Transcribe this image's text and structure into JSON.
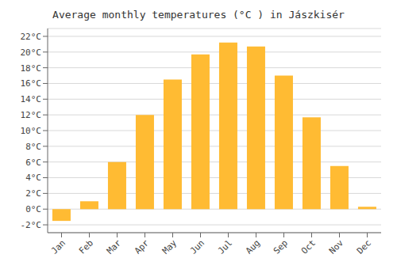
{
  "chart_data": {
    "type": "bar",
    "title": "Average monthly temperatures (°C ) in Jászkisér",
    "categories": [
      "Jan",
      "Feb",
      "Mar",
      "Apr",
      "May",
      "Jun",
      "Jul",
      "Aug",
      "Sep",
      "Oct",
      "Nov",
      "Dec"
    ],
    "values": [
      -1.5,
      1.0,
      6.0,
      12.0,
      16.5,
      19.7,
      21.2,
      20.7,
      17.0,
      11.7,
      5.5,
      0.3
    ],
    "color": "#FFBB33",
    "ylim": [
      -3,
      23
    ],
    "yticks": [
      {
        "value": -2,
        "label": "-2°C"
      },
      {
        "value": 0,
        "label": "0°C"
      },
      {
        "value": 2,
        "label": "2°C"
      },
      {
        "value": 4,
        "label": "4°C"
      },
      {
        "value": 6,
        "label": "6°C"
      },
      {
        "value": 8,
        "label": "8°C"
      },
      {
        "value": 10,
        "label": "10°C"
      },
      {
        "value": 12,
        "label": "12°C"
      },
      {
        "value": 14,
        "label": "14°C"
      },
      {
        "value": 16,
        "label": "16°C"
      },
      {
        "value": 18,
        "label": "18°C"
      },
      {
        "value": 20,
        "label": "20°C"
      },
      {
        "value": 22,
        "label": "22°C"
      }
    ],
    "grid": true
  }
}
